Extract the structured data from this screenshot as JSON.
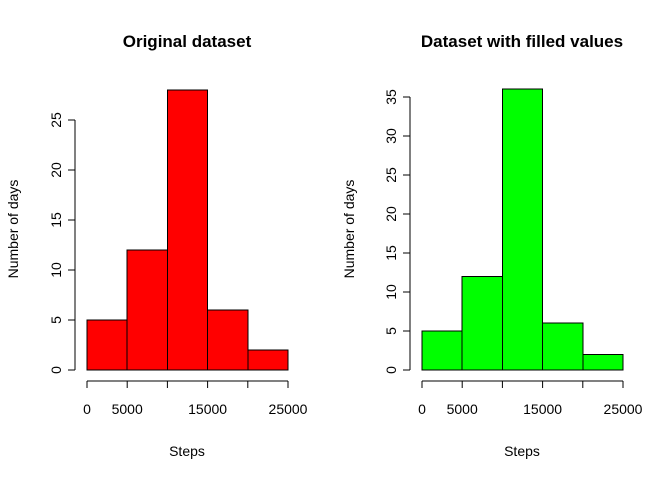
{
  "chart_data": [
    {
      "type": "bar",
      "title": "Original dataset",
      "xlabel": "Steps",
      "ylabel": "Number of days",
      "bar_color": "#FF0000",
      "bins": [
        {
          "from": 0,
          "to": 5000,
          "count": 5
        },
        {
          "from": 5000,
          "to": 10000,
          "count": 12
        },
        {
          "from": 10000,
          "to": 15000,
          "count": 28
        },
        {
          "from": 15000,
          "to": 20000,
          "count": 6
        },
        {
          "from": 20000,
          "to": 25000,
          "count": 2
        }
      ],
      "x_ticks": [
        "0",
        "5000",
        "15000",
        "25000"
      ],
      "x_tick_values": [
        0,
        5000,
        10000,
        15000,
        20000,
        25000
      ],
      "x_tick_labels_shown": [
        0,
        5000,
        15000,
        25000
      ],
      "y_ticks": [
        0,
        5,
        10,
        15,
        20,
        25
      ],
      "y_tick_labels": [
        "0",
        "5",
        "10",
        "15",
        "20",
        "25"
      ],
      "xlim": [
        0,
        25000
      ],
      "ylim": [
        0,
        28
      ],
      "grid": false
    },
    {
      "type": "bar",
      "title": "Dataset with filled values",
      "xlabel": "Steps",
      "ylabel": "Number of days",
      "bar_color": "#00FF00",
      "bins": [
        {
          "from": 0,
          "to": 5000,
          "count": 5
        },
        {
          "from": 5000,
          "to": 10000,
          "count": 12
        },
        {
          "from": 10000,
          "to": 15000,
          "count": 36
        },
        {
          "from": 15000,
          "to": 20000,
          "count": 6
        },
        {
          "from": 20000,
          "to": 25000,
          "count": 2
        }
      ],
      "x_ticks": [
        "0",
        "5000",
        "15000",
        "25000"
      ],
      "x_tick_values": [
        0,
        5000,
        10000,
        15000,
        20000,
        25000
      ],
      "x_tick_labels_shown": [
        0,
        5000,
        15000,
        25000
      ],
      "y_ticks": [
        0,
        5,
        10,
        15,
        20,
        25,
        30,
        35
      ],
      "y_tick_labels": [
        "0",
        "5",
        "10",
        "15",
        "20",
        "25",
        "30",
        "35"
      ],
      "xlim": [
        0,
        25000
      ],
      "ylim": [
        0,
        36
      ],
      "grid": false
    }
  ]
}
